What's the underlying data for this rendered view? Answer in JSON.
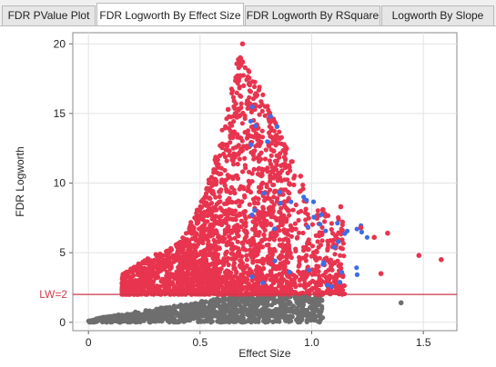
{
  "tabs": [
    {
      "label": "FDR PValue Plot",
      "active": false
    },
    {
      "label": "FDR Logworth By Effect Size",
      "active": true
    },
    {
      "label": "FDR Logworth By RSquare",
      "active": false
    },
    {
      "label": "Logworth By Slope",
      "active": false
    }
  ],
  "chart_data": {
    "type": "scatter",
    "xlabel": "Effect Size",
    "ylabel": "FDR Logworth",
    "xlim": [
      -0.07,
      1.65
    ],
    "ylim": [
      -0.6,
      20.8
    ],
    "x_ticks": [
      0,
      0.5,
      1.0,
      1.5
    ],
    "x_tick_labels": [
      "0",
      "0.5",
      "1.0",
      "1.5"
    ],
    "y_ticks": [
      0,
      5,
      10,
      15,
      20
    ],
    "y_tick_labels": [
      "0",
      "5",
      "10",
      "15",
      "20"
    ],
    "grid": true,
    "reference_line": {
      "y": 2,
      "label": "LW=2",
      "color": "#d23c4b"
    },
    "colors": {
      "significant": "#e8344e",
      "high_effect": "#3a6fe8",
      "nonsignificant": "#6e6e6e"
    },
    "notable_points": [
      {
        "x": 0.69,
        "y": 20.0
      },
      {
        "x": 0.68,
        "y": 19.0
      },
      {
        "x": 0.69,
        "y": 18.7
      },
      {
        "x": 1.58,
        "y": 4.5
      },
      {
        "x": 1.48,
        "y": 4.8
      },
      {
        "x": 1.34,
        "y": 6.4
      },
      {
        "x": 1.22,
        "y": 6.8
      },
      {
        "x": 1.13,
        "y": 8.3
      },
      {
        "x": 1.4,
        "y": 1.4
      },
      {
        "x": 1.31,
        "y": 3.5
      },
      {
        "x": 0.95,
        "y": 10.5
      },
      {
        "x": 0.87,
        "y": 11.3
      },
      {
        "x": 1.28,
        "y": 6.1
      },
      {
        "x": 1.05,
        "y": 8.1
      },
      {
        "x": 0.83,
        "y": 12.3
      }
    ]
  }
}
